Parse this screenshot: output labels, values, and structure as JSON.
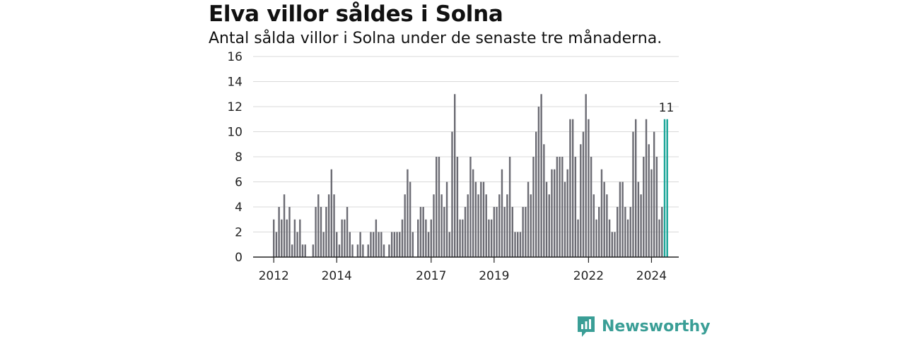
{
  "header": {
    "title": "Elva villor såldes i Solna",
    "subtitle": "Antal sålda villor i Solna under de senaste tre månaderna."
  },
  "brand": {
    "name": "Newsworthy",
    "icon": "newsworthy-logo-icon",
    "color": "#3a9e96"
  },
  "colors": {
    "bars": "#6b6b73",
    "highlight": "#1aa598",
    "grid": "#d9d9d9",
    "axis": "#222222"
  },
  "chart_data": {
    "type": "bar",
    "title": "Elva villor såldes i Solna",
    "subtitle": "Antal sålda villor i Solna under de senaste tre månaderna.",
    "xlabel": "",
    "ylabel": "",
    "ylim": [
      0,
      16
    ],
    "yticks": [
      0,
      2,
      4,
      6,
      8,
      10,
      12,
      14,
      16
    ],
    "grid": true,
    "x_start": "2012-01",
    "x_ticks": [
      {
        "label": "2012",
        "date": "2012-01"
      },
      {
        "label": "2014",
        "date": "2014-01"
      },
      {
        "label": "2017",
        "date": "2017-01"
      },
      {
        "label": "2019",
        "date": "2019-01"
      },
      {
        "label": "2022",
        "date": "2022-01"
      },
      {
        "label": "2024",
        "date": "2024-01"
      }
    ],
    "highlight_label": "11",
    "values": [
      3,
      2,
      4,
      3,
      5,
      3,
      4,
      1,
      3,
      2,
      3,
      1,
      1,
      0,
      0,
      1,
      4,
      5,
      4,
      2,
      4,
      5,
      7,
      5,
      2,
      1,
      3,
      3,
      4,
      2,
      1,
      0,
      1,
      2,
      1,
      0,
      1,
      2,
      2,
      3,
      2,
      2,
      1,
      0,
      1,
      2,
      2,
      2,
      2,
      3,
      5,
      7,
      6,
      2,
      0,
      3,
      4,
      4,
      3,
      2,
      3,
      5,
      8,
      8,
      5,
      4,
      6,
      2,
      10,
      13,
      8,
      3,
      3,
      4,
      5,
      8,
      7,
      6,
      5,
      6,
      6,
      5,
      3,
      3,
      4,
      4,
      5,
      7,
      4,
      5,
      8,
      4,
      2,
      2,
      2,
      4,
      4,
      6,
      5,
      8,
      10,
      12,
      13,
      9,
      6,
      5,
      7,
      7,
      8,
      8,
      8,
      6,
      7,
      11,
      11,
      8,
      3,
      9,
      10,
      13,
      11,
      8,
      5,
      3,
      4,
      7,
      6,
      5,
      3,
      2,
      2,
      4,
      6,
      6,
      4,
      3,
      4,
      10,
      11,
      6,
      5,
      8,
      11,
      9,
      7,
      10,
      8,
      3,
      4,
      11,
      11
    ],
    "highlight_last": 2
  }
}
